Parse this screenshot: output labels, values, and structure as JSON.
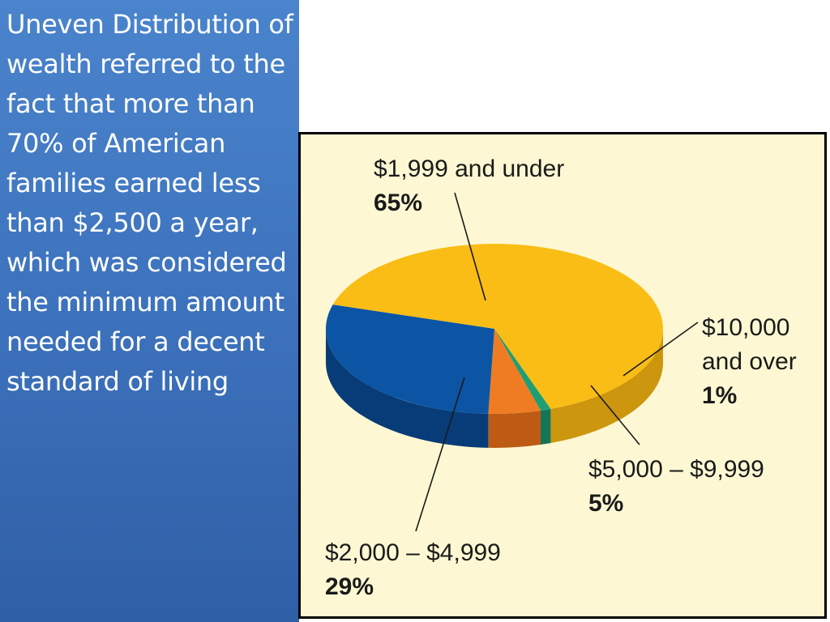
{
  "sidebar": {
    "text": "Uneven Distribution of wealth referred to the fact that more than 70% of American families earned less than $2,500 a year, which was considered the minimum amount needed for a decent standard of living"
  },
  "chart_data": {
    "type": "pie",
    "title": "",
    "style": "3d",
    "series": [
      {
        "label": "$1,999 and under",
        "percent_label": "65%",
        "value": 65,
        "color": "#f9bd16",
        "side_color": "#cc960e"
      },
      {
        "label": "$10,000 and over",
        "label_lines": [
          "$10,000",
          "and over"
        ],
        "percent_label": "1%",
        "value": 1,
        "color": "#1f9e73",
        "side_color": "#157555"
      },
      {
        "label": "$5,000 – $9,999",
        "percent_label": "5%",
        "value": 5,
        "color": "#ef7c22",
        "side_color": "#bd5a14"
      },
      {
        "label": "$2,000 – $4,999",
        "percent_label": "29%",
        "value": 29,
        "color": "#0c55a4",
        "side_color": "#073c78"
      }
    ],
    "colors": {
      "background": "#fdf8d3",
      "frame": "#000000"
    }
  }
}
